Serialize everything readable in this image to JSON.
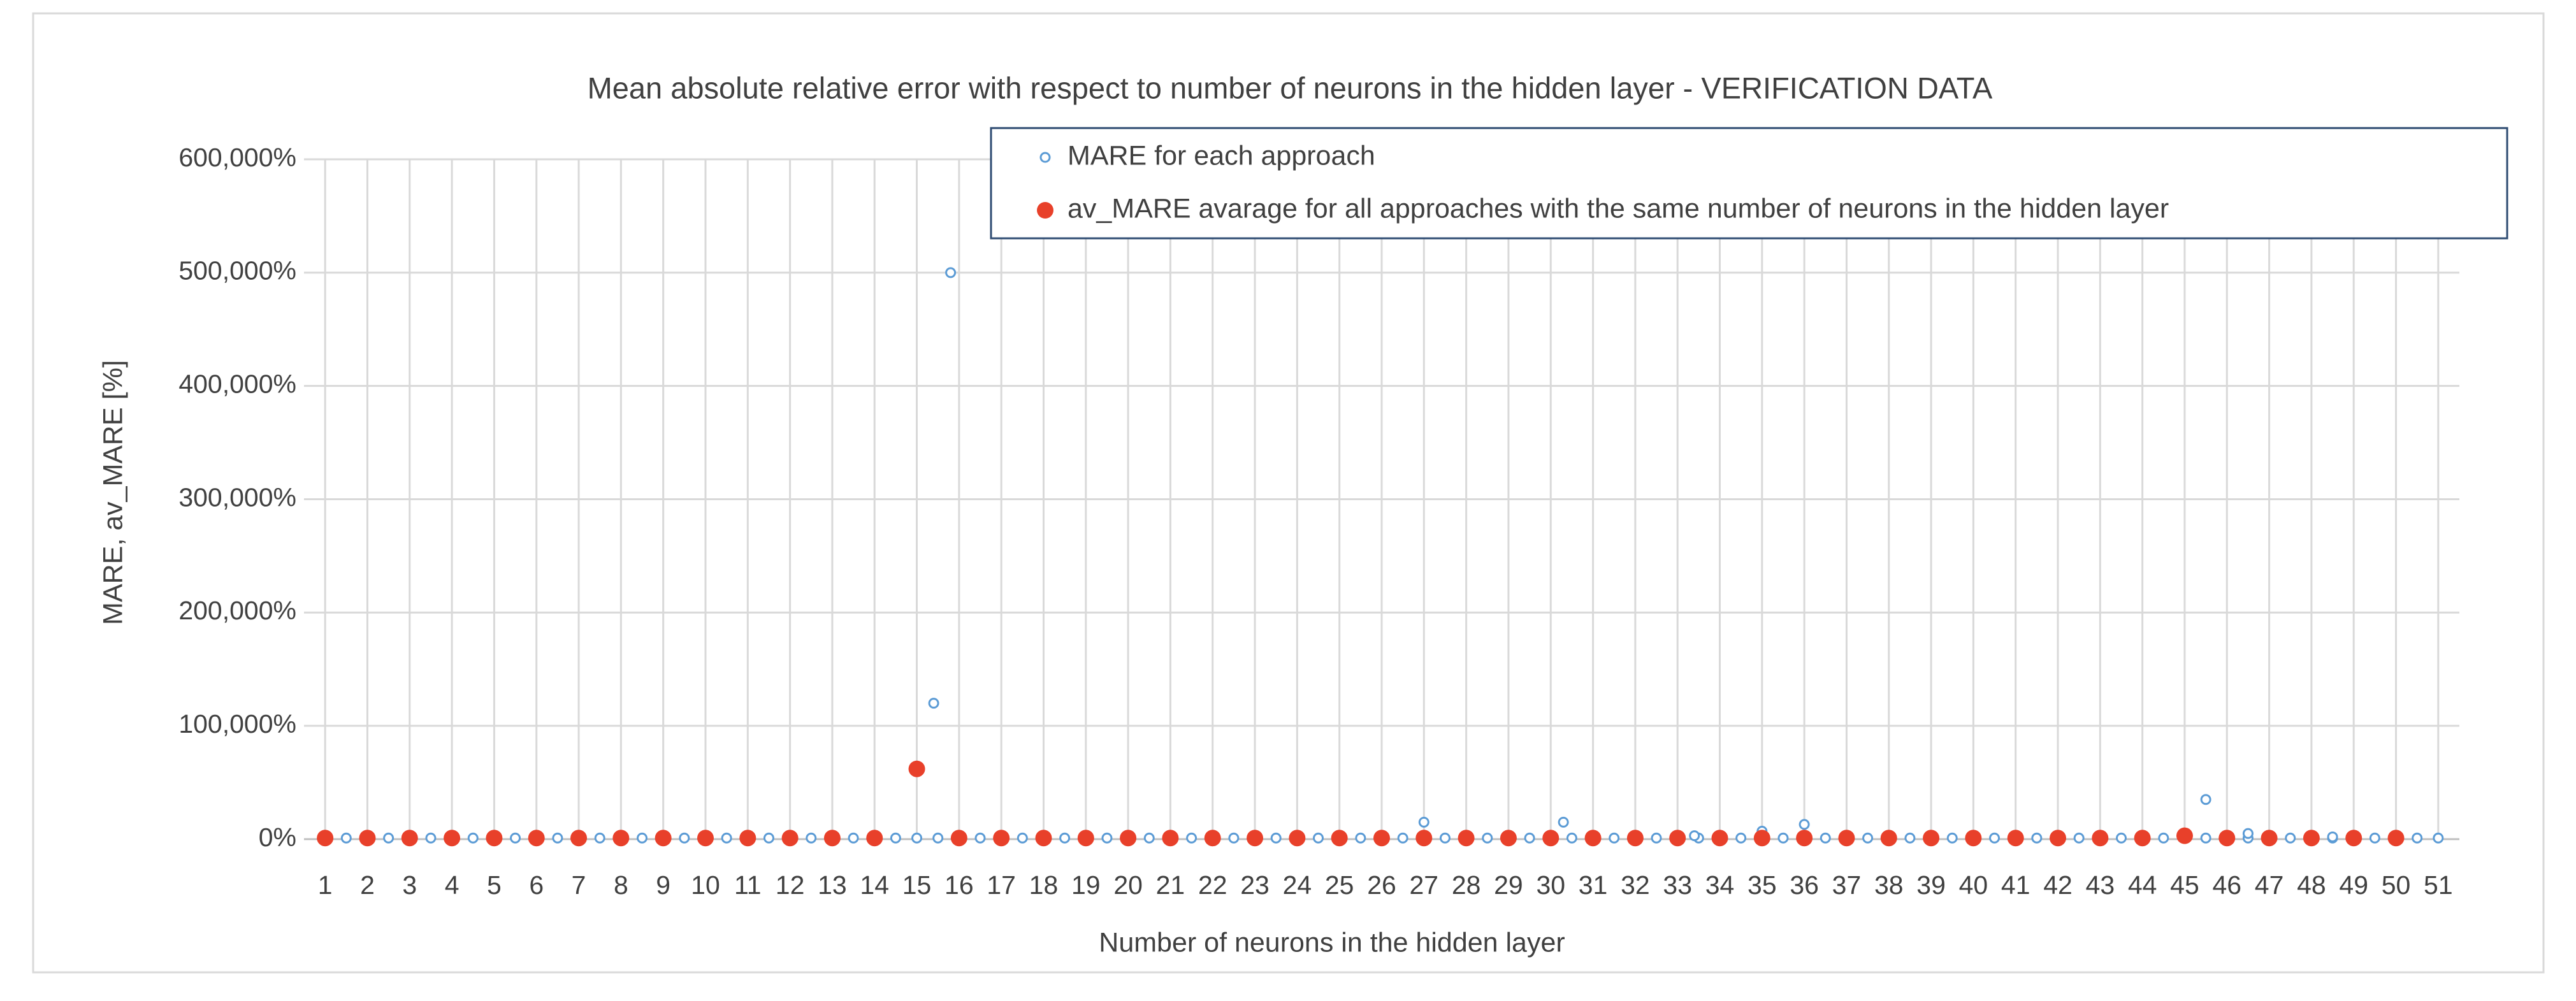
{
  "chart_data": {
    "type": "scatter",
    "title": "Mean absolute relative error with respect to number of neurons in the hidden layer - VERIFICATION DATA",
    "x_label": "Number of neurons in the hidden layer",
    "y_label": "MARE, av_MARE [%]",
    "xlim": [
      0.5,
      51.5
    ],
    "xticks": [
      1,
      2,
      3,
      4,
      5,
      6,
      7,
      8,
      9,
      10,
      11,
      12,
      13,
      14,
      15,
      16,
      17,
      18,
      19,
      20,
      21,
      22,
      23,
      24,
      25,
      26,
      27,
      28,
      29,
      30,
      31,
      32,
      33,
      34,
      35,
      36,
      37,
      38,
      39,
      40,
      41,
      42,
      43,
      44,
      45,
      46,
      47,
      48,
      49,
      50,
      51
    ],
    "ylim": [
      0,
      600000
    ],
    "yticks": [
      {
        "value": 0,
        "label": "0%"
      },
      {
        "value": 100000,
        "label": "100,000%"
      },
      {
        "value": 200000,
        "label": "200,000%"
      },
      {
        "value": 300000,
        "label": "300,000%"
      },
      {
        "value": 400000,
        "label": "400,000%"
      },
      {
        "value": 500000,
        "label": "500,000%"
      },
      {
        "value": 600000,
        "label": "600,000%"
      }
    ],
    "grid": true,
    "legend": "top-right",
    "series": [
      {
        "name": "MARE for each approach",
        "color": "#5b9bd5",
        "marker": "hollow",
        "x": [
          1,
          1.5,
          2,
          2.5,
          3,
          3.5,
          4,
          4.5,
          5,
          5.5,
          6,
          6.5,
          7,
          7.5,
          8,
          8.5,
          9,
          9.5,
          10,
          10.5,
          11,
          11.5,
          12,
          12.5,
          13,
          13.5,
          14,
          14.5,
          15,
          15.5,
          16,
          16.5,
          17,
          17.5,
          18,
          18.5,
          19,
          19.5,
          20,
          20.5,
          21,
          21.5,
          22,
          22.5,
          23,
          23.5,
          24,
          24.5,
          25,
          25.5,
          26,
          26.5,
          27,
          27.5,
          28,
          28.5,
          29,
          29.5,
          30,
          30.5,
          31,
          31.5,
          32,
          32.5,
          33,
          33.5,
          34,
          34.5,
          35,
          35.5,
          36,
          36.5,
          37,
          37.5,
          38,
          38.5,
          39,
          39.5,
          40,
          40.5,
          41,
          41.5,
          42,
          42.5,
          43,
          43.5,
          44,
          44.5,
          45,
          45.5,
          46,
          46.5,
          47,
          47.5,
          48,
          48.5,
          49,
          49.5,
          50,
          50.5,
          51,
          15.4,
          15.8,
          27,
          30.3,
          33.4,
          35,
          36,
          45.5,
          46.5,
          48.5
        ],
        "values": [
          1000,
          1000,
          1000,
          1000,
          1000,
          1000,
          1000,
          1000,
          1000,
          1000,
          1000,
          1000,
          1000,
          1000,
          1000,
          1000,
          1000,
          1000,
          1000,
          1000,
          1000,
          1000,
          1000,
          1000,
          1000,
          1000,
          1000,
          1000,
          1000,
          1000,
          1000,
          1000,
          1000,
          1000,
          1000,
          1000,
          1000,
          1000,
          1000,
          1000,
          1000,
          1000,
          1000,
          1000,
          1000,
          1000,
          1000,
          1000,
          1000,
          1000,
          1000,
          1000,
          1000,
          1000,
          1000,
          1000,
          1000,
          1000,
          1000,
          1000,
          1000,
          1000,
          1000,
          1000,
          1000,
          1000,
          1000,
          1000,
          1000,
          1000,
          1000,
          1000,
          1000,
          1000,
          1000,
          1000,
          1000,
          1000,
          1000,
          1000,
          1000,
          1000,
          1000,
          1000,
          1000,
          1000,
          1000,
          1000,
          1000,
          1000,
          1000,
          1000,
          1000,
          1000,
          1000,
          1000,
          1000,
          1000,
          1000,
          1000,
          1000,
          120000,
          500000,
          15000,
          15000,
          3000,
          7000,
          13000,
          35000,
          5000,
          2000
        ]
      },
      {
        "name": "av_MARE avarage for all approaches with the same number of neurons in the hidden layer",
        "color": "#e8402a",
        "marker": "filled",
        "x": [
          1,
          2,
          3,
          4,
          5,
          6,
          7,
          8,
          9,
          10,
          11,
          12,
          13,
          14,
          15,
          16,
          17,
          18,
          19,
          20,
          21,
          22,
          23,
          24,
          25,
          26,
          27,
          28,
          29,
          30,
          31,
          32,
          33,
          34,
          35,
          36,
          37,
          38,
          39,
          40,
          41,
          42,
          43,
          44,
          45,
          46,
          47,
          48,
          49,
          50
        ],
        "values": [
          1000,
          1000,
          1000,
          1000,
          1000,
          1000,
          1000,
          1000,
          1000,
          1000,
          1000,
          1000,
          1000,
          1000,
          62000,
          1000,
          1000,
          1000,
          1000,
          1000,
          1000,
          1000,
          1000,
          1000,
          1000,
          1000,
          1000,
          1000,
          1000,
          1000,
          1000,
          1000,
          1000,
          1000,
          1000,
          1000,
          1000,
          1000,
          1000,
          1000,
          1000,
          1000,
          1000,
          1000,
          3000,
          1000,
          1000,
          1000,
          1000,
          1000
        ]
      }
    ]
  }
}
